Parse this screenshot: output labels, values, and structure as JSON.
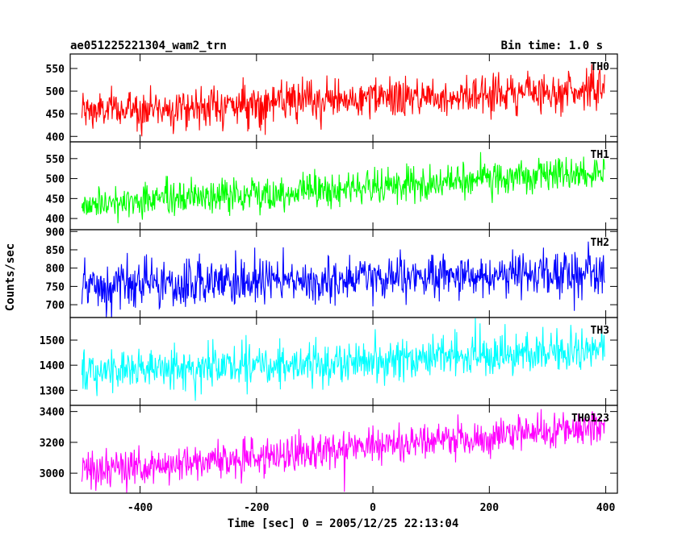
{
  "header": {
    "title": "ae051225221304_wam2_trn",
    "bin_time": "Bin time: 1.0 s"
  },
  "axes": {
    "xlabel": "Time [sec] 0 = 2005/12/25 22:13:04",
    "ylabel": "Counts/sec"
  },
  "chart_data": {
    "type": "line",
    "xlabel": "Time [sec] 0 = 2005/12/25 22:13:04",
    "ylabel": "Counts/sec",
    "xlim": [
      -520,
      420
    ],
    "xticks": [
      -400,
      -200,
      0,
      200,
      400
    ],
    "x_start": -500,
    "x_end": 398,
    "bin_time_s": 1.0,
    "grid": false,
    "panels": [
      {
        "name": "TH0",
        "color": "#ff0000",
        "ylim": [
          388,
          582
        ],
        "yticks": [
          400,
          450,
          500,
          550
        ],
        "trend": {
          "x": [
            -500,
            400
          ],
          "y": [
            455,
            505
          ]
        },
        "noise_sd": 22
      },
      {
        "name": "TH1",
        "color": "#00ff00",
        "ylim": [
          372,
          592
        ],
        "yticks": [
          400,
          450,
          500,
          550
        ],
        "trend": {
          "x": [
            -500,
            400
          ],
          "y": [
            435,
            515
          ]
        },
        "noise_sd": 22
      },
      {
        "name": "TH2",
        "color": "#0000ff",
        "ylim": [
          665,
          905
        ],
        "yticks": [
          700,
          750,
          800,
          850,
          900
        ],
        "trend": {
          "x": [
            -500,
            400
          ],
          "y": [
            745,
            790
          ]
        },
        "noise_sd": 32
      },
      {
        "name": "TH3",
        "color": "#00ffff",
        "ylim": [
          1240,
          1590
        ],
        "yticks": [
          1300,
          1400,
          1500
        ],
        "trend": {
          "x": [
            -500,
            400
          ],
          "y": [
            1370,
            1460
          ]
        },
        "noise_sd": 42
      },
      {
        "name": "TH0123",
        "color": "#ff00ff",
        "ylim": [
          2870,
          3440
        ],
        "yticks": [
          3000,
          3200,
          3400
        ],
        "trend": {
          "x": [
            -500,
            400
          ],
          "y": [
            3010,
            3300
          ]
        },
        "noise_sd": 62
      }
    ]
  }
}
